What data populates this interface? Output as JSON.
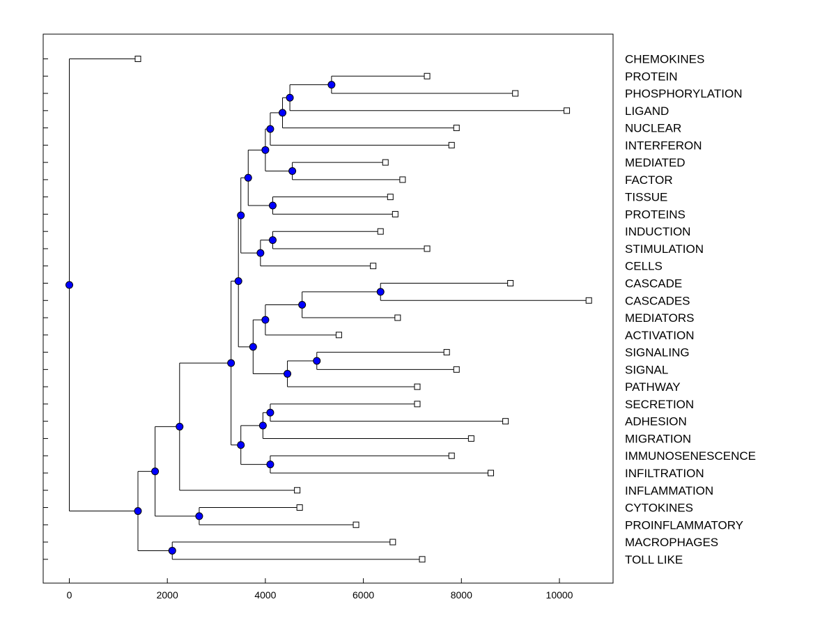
{
  "chart_data": {
    "type": "dendrogram",
    "title": "",
    "xlabel": "",
    "ylabel": "",
    "xlim": [
      -520,
      11120
    ],
    "xticks": [
      0,
      2000,
      4000,
      6000,
      8000,
      10000
    ],
    "xtick_labels": [
      "0",
      "2000",
      "4000",
      "6000",
      "8000",
      "10000"
    ],
    "orientation": "leaves-right",
    "colors": {
      "node": "#0000ff",
      "line": "#000000",
      "leaf": "#ffffff"
    },
    "leaves": [
      {
        "label": "CHEMOKINES",
        "x": 1400
      },
      {
        "label": "PROTEIN",
        "x": 7300
      },
      {
        "label": "PHOSPHORYLATION",
        "x": 9100
      },
      {
        "label": "LIGAND",
        "x": 10150
      },
      {
        "label": "NUCLEAR",
        "x": 7900
      },
      {
        "label": "INTERFERON",
        "x": 7800
      },
      {
        "label": "MEDIATED",
        "x": 6450
      },
      {
        "label": "FACTOR",
        "x": 6800
      },
      {
        "label": "TISSUE",
        "x": 6550
      },
      {
        "label": "PROTEINS",
        "x": 6650
      },
      {
        "label": "INDUCTION",
        "x": 6350
      },
      {
        "label": "STIMULATION",
        "x": 7300
      },
      {
        "label": "CELLS",
        "x": 6200
      },
      {
        "label": "CASCADE",
        "x": 9000
      },
      {
        "label": "CASCADES",
        "x": 10600
      },
      {
        "label": "MEDIATORS",
        "x": 6700
      },
      {
        "label": "ACTIVATION",
        "x": 5500
      },
      {
        "label": "SIGNALING",
        "x": 7700
      },
      {
        "label": "SIGNAL",
        "x": 7900
      },
      {
        "label": "PATHWAY",
        "x": 7100
      },
      {
        "label": "SECRETION",
        "x": 7100
      },
      {
        "label": "ADHESION",
        "x": 8900
      },
      {
        "label": "MIGRATION",
        "x": 8200
      },
      {
        "label": "IMMUNOSENESCENCE",
        "x": 7800
      },
      {
        "label": "INFILTRATION",
        "x": 8600
      },
      {
        "label": "INFLAMMATION",
        "x": 4650
      },
      {
        "label": "CYTOKINES",
        "x": 4700
      },
      {
        "label": "PROINFLAMMATORY",
        "x": 5850
      },
      {
        "label": "MACROPHAGES",
        "x": 6600
      },
      {
        "label": "TOLL LIKE",
        "x": 7200
      }
    ],
    "merges": [
      {
        "id": "m1",
        "x": 5350,
        "children": [
          "L1",
          "L2"
        ]
      },
      {
        "id": "m2",
        "x": 4500,
        "children": [
          "m1",
          "L3"
        ]
      },
      {
        "id": "m3",
        "x": 4350,
        "children": [
          "m2",
          "L4"
        ]
      },
      {
        "id": "m4",
        "x": 4100,
        "children": [
          "m3",
          "L5"
        ]
      },
      {
        "id": "m5",
        "x": 4550,
        "children": [
          "L6",
          "L7"
        ]
      },
      {
        "id": "m6",
        "x": 4000,
        "children": [
          "m4",
          "m5"
        ]
      },
      {
        "id": "m7",
        "x": 4150,
        "children": [
          "L8",
          "L9"
        ]
      },
      {
        "id": "m8",
        "x": 3650,
        "children": [
          "m6",
          "m7"
        ]
      },
      {
        "id": "m9",
        "x": 4150,
        "children": [
          "L10",
          "L11"
        ]
      },
      {
        "id": "m10",
        "x": 3900,
        "children": [
          "m9",
          "L12"
        ]
      },
      {
        "id": "m11",
        "x": 3500,
        "children": [
          "m8",
          "m10"
        ]
      },
      {
        "id": "m12",
        "x": 6350,
        "children": [
          "L13",
          "L14"
        ]
      },
      {
        "id": "m13",
        "x": 4750,
        "children": [
          "m12",
          "L15"
        ]
      },
      {
        "id": "m14",
        "x": 4000,
        "children": [
          "m13",
          "L16"
        ]
      },
      {
        "id": "m15",
        "x": 5050,
        "children": [
          "L17",
          "L18"
        ]
      },
      {
        "id": "m16",
        "x": 4450,
        "children": [
          "m15",
          "L19"
        ]
      },
      {
        "id": "m17",
        "x": 3750,
        "children": [
          "m14",
          "m16"
        ]
      },
      {
        "id": "m18",
        "x": 3450,
        "children": [
          "m11",
          "m17"
        ]
      },
      {
        "id": "m19",
        "x": 4100,
        "children": [
          "L20",
          "L21"
        ]
      },
      {
        "id": "m20",
        "x": 3950,
        "children": [
          "m19",
          "L22"
        ]
      },
      {
        "id": "m21",
        "x": 4100,
        "children": [
          "L23",
          "L24"
        ]
      },
      {
        "id": "m22",
        "x": 3500,
        "children": [
          "m20",
          "m21"
        ]
      },
      {
        "id": "m23",
        "x": 3300,
        "children": [
          "m18",
          "m22"
        ]
      },
      {
        "id": "m24",
        "x": 2250,
        "children": [
          "m23",
          "L25"
        ]
      },
      {
        "id": "m25",
        "x": 2650,
        "children": [
          "L26",
          "L27"
        ]
      },
      {
        "id": "m26",
        "x": 1750,
        "children": [
          "m24",
          "m25"
        ]
      },
      {
        "id": "m27",
        "x": 2100,
        "children": [
          "L28",
          "L29"
        ]
      },
      {
        "id": "m28",
        "x": 1400,
        "children": [
          "m26",
          "m27"
        ]
      },
      {
        "id": "m29",
        "x": 0,
        "children": [
          "L0",
          "m28"
        ]
      }
    ]
  }
}
